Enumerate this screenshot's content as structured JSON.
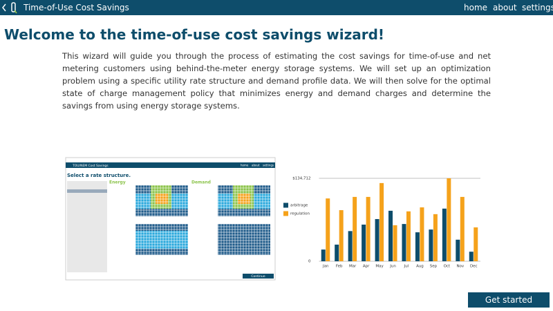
{
  "header": {
    "title": "Time-of-Use Cost Savings",
    "nav": [
      "home",
      "about",
      "settings"
    ]
  },
  "main": {
    "heading": "Welcome to the time-of-use cost savings wizard!",
    "intro": "This wizard will guide you through the process of estimating the cost savings for time-of-use and net metering customers using behind-the-meter energy storage systems. We will set up an optimization problem using a specific utility rate structure and demand profile data. We will then solve for the optimal state of charge management policy that minimizes energy and demand charges and determine the savings from using energy storage systems.",
    "button": "Get started"
  },
  "preview": {
    "title": "TOU/NEM Cost Savings",
    "nav": [
      "home",
      "about",
      "settings"
    ],
    "heading": "Select a rate structure.",
    "energy": "Energy",
    "demand": "Demand",
    "button": "Continue"
  },
  "chart_data": {
    "type": "bar",
    "categories": [
      "Jan",
      "Feb",
      "Mar",
      "Apr",
      "May",
      "Jun",
      "Jul",
      "Aug",
      "Sep",
      "Oct",
      "Nov",
      "Dec"
    ],
    "series": [
      {
        "name": "arbitrage",
        "color": "#0e4d6b",
        "values": [
          19000,
          27000,
          49000,
          59500,
          68500,
          82000,
          60500,
          47000,
          51500,
          85500,
          35000,
          15500
        ]
      },
      {
        "name": "regulation",
        "color": "#f5a21b",
        "values": [
          102000,
          83000,
          104500,
          104500,
          127000,
          58500,
          81000,
          87500,
          76500,
          134712,
          104500,
          55000
        ]
      }
    ],
    "ylim": [
      0,
      134712
    ],
    "yticks": [
      0,
      {
        "value": 134712,
        "label": "$134,712"
      }
    ],
    "legend": "left"
  }
}
